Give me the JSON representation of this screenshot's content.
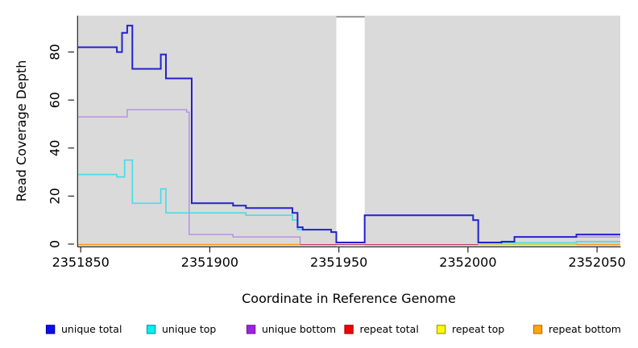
{
  "chart_data": {
    "type": "line",
    "step": true,
    "title": "",
    "xlabel": "Coordinate in Reference Genome",
    "ylabel": "Read Coverage Depth",
    "xlim": [
      2351849,
      2352059
    ],
    "ylim": [
      0,
      95
    ],
    "grid": false,
    "panel_bg": "#DADADA",
    "xticks": [
      2351850,
      2351900,
      2351950,
      2352000,
      2352050
    ],
    "xtick_labels": [
      "2351850",
      "2351900",
      "2351950",
      "2352000",
      "2352050"
    ],
    "yticks": [
      0,
      20,
      40,
      60,
      80
    ],
    "ytick_labels": [
      "0",
      "20",
      "40",
      "60",
      "80"
    ],
    "no_data_region": {
      "from": 2351949,
      "to": 2351960
    },
    "series": [
      {
        "name": "unique bottom",
        "color": "#B285E0",
        "width": 1.3,
        "segments": [
          [
            [
              2351849,
              53
            ],
            [
              2351868,
              56
            ],
            [
              2351891,
              55
            ],
            [
              2351892,
              4
            ],
            [
              2351909,
              3
            ],
            [
              2351935,
              0
            ],
            [
              2352013,
              1
            ],
            [
              2352018,
              3
            ],
            [
              2352059,
              3
            ]
          ]
        ]
      },
      {
        "name": "repeat total",
        "color": "#CC3D58",
        "width": 1.2,
        "segments": [
          [
            [
              2351849,
              0
            ],
            [
              2352059,
              0
            ]
          ]
        ]
      },
      {
        "name": "repeat top",
        "color": "#CDD44E",
        "width": 1.3,
        "segments": [
          [
            [
              2352004,
              0
            ],
            [
              2352042,
              0
            ]
          ]
        ]
      },
      {
        "name": "repeat bottom",
        "color": "#FF9E1E",
        "width": 1.9,
        "segments": [
          [
            [
              2351849,
              0
            ],
            [
              2351935,
              0
            ]
          ],
          [
            [
              2352042,
              0
            ],
            [
              2352059,
              0
            ]
          ]
        ]
      },
      {
        "name": "unique top",
        "color": "#49DCE5",
        "width": 1.7,
        "segments": [
          [
            [
              2351849,
              29
            ],
            [
              2351864,
              28
            ],
            [
              2351867,
              35
            ],
            [
              2351870,
              17
            ],
            [
              2351881,
              23
            ],
            [
              2351883,
              13
            ],
            [
              2351914,
              12
            ],
            [
              2351932,
              10
            ],
            [
              2351934,
              6
            ],
            [
              2351947,
              5
            ],
            [
              2351949,
              0
            ],
            [
              2351960,
              12
            ],
            [
              2352002,
              10
            ],
            [
              2352004,
              0
            ],
            [
              2352042,
              1
            ],
            [
              2352059,
              1
            ]
          ]
        ]
      },
      {
        "name": "unique total",
        "color": "#2422CE",
        "width": 2,
        "segments": [
          [
            [
              2351849,
              82
            ],
            [
              2351864,
              80
            ],
            [
              2351866,
              88
            ],
            [
              2351868,
              91
            ],
            [
              2351870,
              73
            ],
            [
              2351881,
              79
            ],
            [
              2351883,
              69
            ],
            [
              2351893,
              17
            ],
            [
              2351909,
              16
            ],
            [
              2351914,
              15
            ],
            [
              2351932,
              13
            ],
            [
              2351934,
              7
            ],
            [
              2351936,
              6
            ],
            [
              2351947,
              5
            ],
            [
              2351949,
              0
            ],
            [
              2351960,
              12
            ],
            [
              2352002,
              10
            ],
            [
              2352004,
              0
            ],
            [
              2352013,
              1
            ],
            [
              2352018,
              3
            ],
            [
              2352042,
              4
            ],
            [
              2352059,
              4
            ]
          ]
        ]
      }
    ],
    "legend": [
      {
        "label": "unique total",
        "fill": "#0D0DF2",
        "border": "#0000A8"
      },
      {
        "label": "unique top",
        "fill": "#00F2F2",
        "border": "#00A0A8"
      },
      {
        "label": "unique bottom",
        "fill": "#A21FE8",
        "border": "#701F9E"
      },
      {
        "label": "repeat total",
        "fill": "#F40000",
        "border": "#A80000"
      },
      {
        "label": "repeat top",
        "fill": "#FCFC00",
        "border": "#A0A000"
      },
      {
        "label": "repeat bottom",
        "fill": "#FFA512",
        "border": "#B97400"
      }
    ],
    "legend_position": "bottom",
    "legend_x": [
      57.5,
      182.5,
      306.5,
      428,
      542.5,
      662.5
    ]
  }
}
